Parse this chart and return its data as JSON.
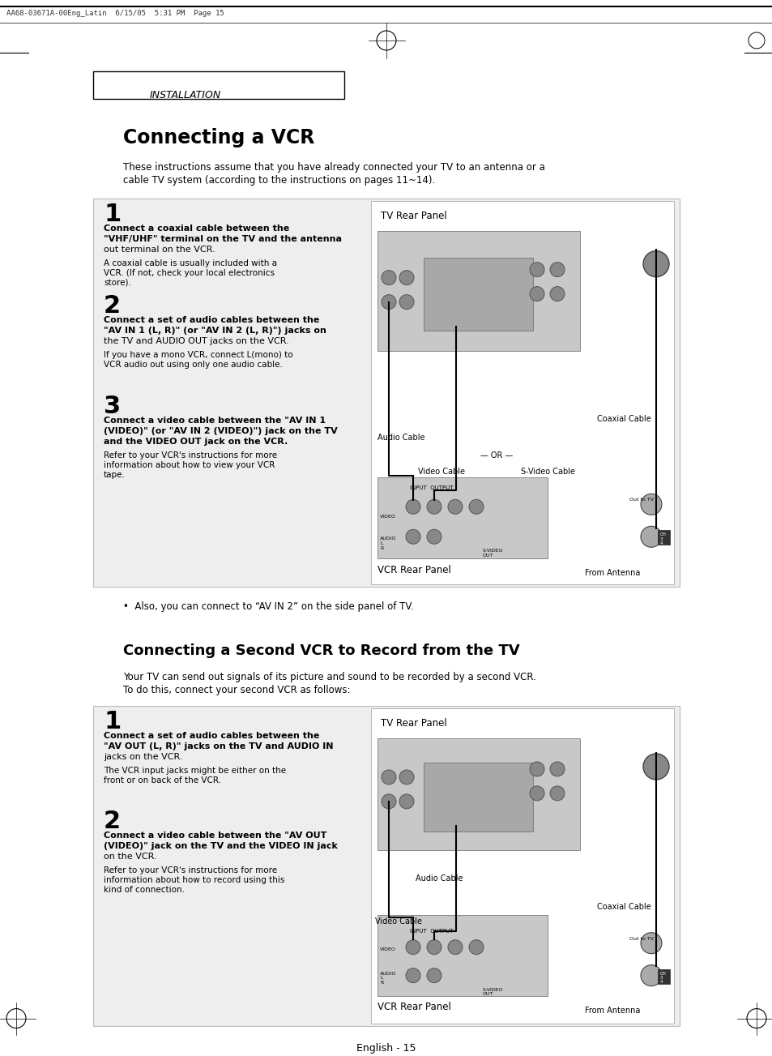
{
  "page_header": "AA68-03671A-00Eng_Latin  6/15/05  5:31 PM  Page 15",
  "section_label": "INSTALLATION",
  "title1": "Connecting a VCR",
  "intro1": "These instructions assume that you have already connected your TV to an antenna or a\ncable TV system (according to the instructions on pages 11~14).",
  "step1_num": "1",
  "step1_bold": "Connect a coaxial cable between the\n\"VHF/UHF\" terminal on the TV and the antenna\nout terminal on the VCR.",
  "step1_normal": "A coaxial cable is usually included with a\nVCR. (If not, check your local electronics\nstore).",
  "step2_num": "2",
  "step2_bold": "Connect a set of audio cables between the\n\"AV IN 1 (L, R)\" (or \"AV IN 2 (L, R)\") jacks on\nthe TV and AUDIO OUT jacks on the VCR.",
  "step2_normal": "If you have a mono VCR, connect L(mono) to\nVCR audio out using only one audio cable.",
  "step3_num": "3",
  "step3_bold": "Connect a video cable between the \"AV IN 1\n(VIDEO)\" (or \"AV IN 2 (VIDEO)\") jack on the TV\nand the VIDEO OUT jack on the VCR.",
  "step3_normal": "Refer to your VCR's instructions for more\ninformation about how to view your VCR\ntape.",
  "bullet1": "•  Also, you can connect to “AV IN 2” on the side panel of TV.",
  "title2": "Connecting a Second VCR to Record from the TV",
  "intro2": "Your TV can send out signals of its picture and sound to be recorded by a second VCR.\nTo do this, connect your second VCR as follows:",
  "s2_step1_num": "1",
  "s2_step1_bold": "Connect a set of audio cables between the\n\"AV OUT (L, R)\" jacks on the TV and AUDIO IN\njacks on the VCR.",
  "s2_step1_normal": "The VCR input jacks might be either on the\nfront or on back of the VCR.",
  "s2_step2_num": "2",
  "s2_step2_bold": "Connect a video cable between the \"AV OUT\n(VIDEO)\" jack on the TV and the VIDEO IN jack\non the VCR.",
  "s2_step2_normal": "Refer to your VCR's instructions for more\ninformation about how to record using this\nkind of connection.",
  "page_footer": "English - 15",
  "bg_color": "#ffffff",
  "box_bg": "#eeeeee",
  "text_color": "#000000"
}
